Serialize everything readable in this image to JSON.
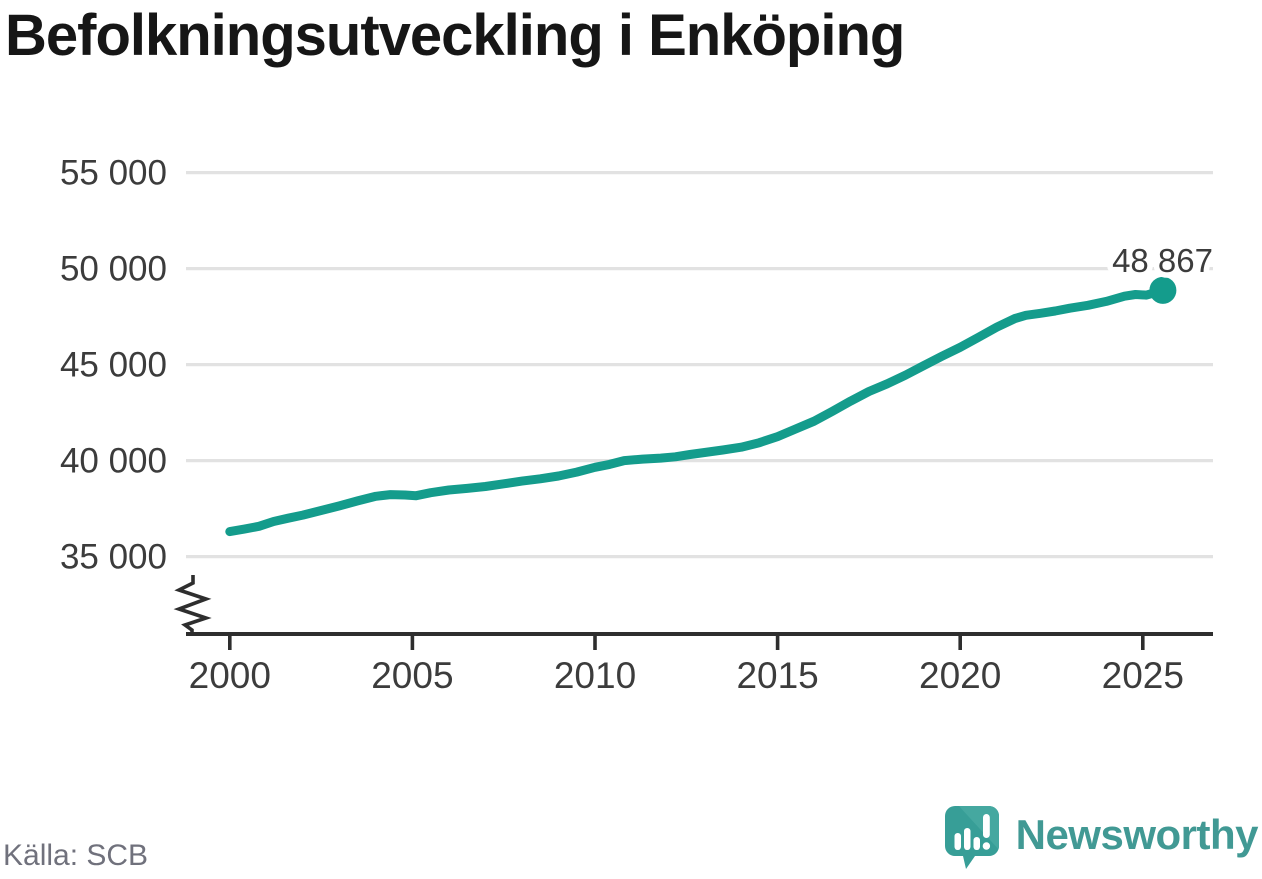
{
  "header": {
    "title": "Befolkningsutveckling i Enköping"
  },
  "footer": {
    "source": "Källa: SCB",
    "brand": "Newsworthy"
  },
  "chart_data": {
    "type": "line",
    "title": "Befolkningsutveckling i Enköping",
    "xlabel": "",
    "ylabel": "",
    "xlim": [
      1998.8,
      2027
    ],
    "ylim": [
      35000,
      55000
    ],
    "axis_break": true,
    "grid": true,
    "end_label": "48 867",
    "end_value": 48867,
    "colors": {
      "line": "#149c8c",
      "grid": "#e2e2e2",
      "axis": "#2e2e2e",
      "tick_text": "#3c3c3c",
      "end_label_text": "#191919",
      "logo": "#3aa19a"
    },
    "yticks": [
      {
        "v": 35000,
        "label": "35 000"
      },
      {
        "v": 40000,
        "label": "40 000"
      },
      {
        "v": 45000,
        "label": "45 000"
      },
      {
        "v": 50000,
        "label": "50 000"
      },
      {
        "v": 55000,
        "label": "55 000"
      }
    ],
    "xticks": [
      {
        "v": 2000,
        "label": "2000"
      },
      {
        "v": 2005,
        "label": "2005"
      },
      {
        "v": 2010,
        "label": "2010"
      },
      {
        "v": 2015,
        "label": "2015"
      },
      {
        "v": 2020,
        "label": "2020"
      },
      {
        "v": 2025,
        "label": "2025"
      }
    ],
    "points": [
      [
        2000.0,
        36300
      ],
      [
        2000.4,
        36430
      ],
      [
        2000.8,
        36580
      ],
      [
        2001.2,
        36830
      ],
      [
        2001.6,
        37000
      ],
      [
        2002.0,
        37160
      ],
      [
        2002.5,
        37400
      ],
      [
        2003.0,
        37640
      ],
      [
        2003.5,
        37900
      ],
      [
        2004.0,
        38140
      ],
      [
        2004.4,
        38230
      ],
      [
        2004.8,
        38210
      ],
      [
        2005.1,
        38170
      ],
      [
        2005.5,
        38330
      ],
      [
        2006.0,
        38470
      ],
      [
        2006.5,
        38550
      ],
      [
        2007.0,
        38650
      ],
      [
        2007.5,
        38790
      ],
      [
        2008.0,
        38930
      ],
      [
        2008.5,
        39050
      ],
      [
        2009.0,
        39200
      ],
      [
        2009.5,
        39400
      ],
      [
        2010.0,
        39650
      ],
      [
        2010.4,
        39800
      ],
      [
        2010.8,
        40000
      ],
      [
        2011.3,
        40080
      ],
      [
        2011.8,
        40130
      ],
      [
        2012.2,
        40200
      ],
      [
        2012.6,
        40320
      ],
      [
        2013.0,
        40420
      ],
      [
        2013.5,
        40550
      ],
      [
        2014.0,
        40700
      ],
      [
        2014.5,
        40930
      ],
      [
        2015.0,
        41250
      ],
      [
        2015.5,
        41650
      ],
      [
        2016.0,
        42050
      ],
      [
        2016.5,
        42570
      ],
      [
        2017.0,
        43100
      ],
      [
        2017.5,
        43600
      ],
      [
        2018.0,
        44000
      ],
      [
        2018.5,
        44450
      ],
      [
        2019.0,
        44950
      ],
      [
        2019.5,
        45430
      ],
      [
        2020.0,
        45900
      ],
      [
        2020.5,
        46420
      ],
      [
        2021.0,
        46950
      ],
      [
        2021.5,
        47400
      ],
      [
        2021.8,
        47570
      ],
      [
        2022.2,
        47670
      ],
      [
        2022.6,
        47790
      ],
      [
        2023.0,
        47940
      ],
      [
        2023.5,
        48090
      ],
      [
        2024.0,
        48290
      ],
      [
        2024.5,
        48560
      ],
      [
        2024.8,
        48650
      ],
      [
        2025.1,
        48620
      ],
      [
        2025.55,
        48867
      ]
    ]
  }
}
